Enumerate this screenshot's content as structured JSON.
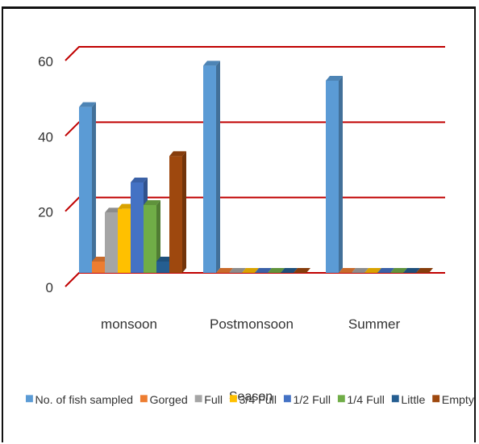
{
  "chart_data": {
    "type": "bar",
    "title": "",
    "xlabel": "Season",
    "ylabel": "",
    "ylim": [
      0,
      60
    ],
    "yticks": [
      0,
      20,
      40,
      60
    ],
    "grid": true,
    "legend_position": "bottom",
    "categories": [
      "monsoon",
      "Postmonsoon",
      "Summer"
    ],
    "series": [
      {
        "name": "No. of fish sampled",
        "color": "#5B9BD5",
        "values": [
          44,
          55,
          51
        ]
      },
      {
        "name": "Gorged",
        "color": "#ED7D31",
        "values": [
          3,
          0,
          0
        ]
      },
      {
        "name": "Full",
        "color": "#A5A5A5",
        "values": [
          16,
          0,
          0
        ]
      },
      {
        "name": "3/4 Full",
        "color": "#FFC000",
        "values": [
          17,
          0,
          0
        ]
      },
      {
        "name": "1/2 Full",
        "color": "#4472C4",
        "values": [
          24,
          0,
          0
        ]
      },
      {
        "name": "1/4 Full",
        "color": "#70AD47",
        "values": [
          18,
          0,
          0
        ]
      },
      {
        "name": "Little",
        "color": "#255E91",
        "values": [
          3,
          0,
          0
        ]
      },
      {
        "name": "Empty",
        "color": "#9E480E",
        "values": [
          31,
          0,
          0
        ]
      }
    ],
    "gridline_color": "#C00000"
  }
}
